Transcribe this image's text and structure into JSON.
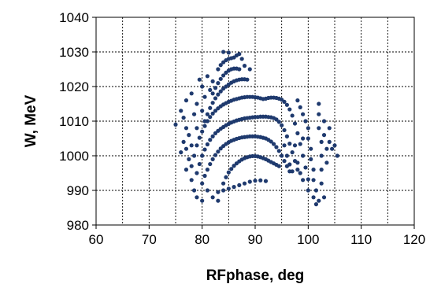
{
  "chart_data": {
    "type": "scatter",
    "xlabel": "RFphase, deg",
    "ylabel": "W, MeV",
    "xlim": [
      60,
      120
    ],
    "ylim": [
      980,
      1040
    ],
    "x_ticks": [
      60,
      70,
      80,
      90,
      100,
      110,
      120
    ],
    "y_ticks": [
      980,
      990,
      1000,
      1010,
      1020,
      1030,
      1040
    ],
    "grid": true,
    "marker_color": "#1F3A6E",
    "series": [
      {
        "points": [
          [
            84.0,
            992.0
          ],
          [
            84.5,
            993.8
          ],
          [
            85.0,
            995.2
          ],
          [
            85.5,
            996.2
          ],
          [
            86.0,
            997.1
          ],
          [
            86.5,
            997.8
          ],
          [
            87.0,
            998.4
          ],
          [
            87.5,
            998.9
          ],
          [
            88.0,
            999.3
          ],
          [
            88.5,
            999.6
          ],
          [
            89.0,
            999.8
          ],
          [
            89.5,
            999.9
          ],
          [
            90.0,
            999.9
          ],
          [
            90.5,
            999.8
          ],
          [
            91.0,
            999.6
          ],
          [
            91.5,
            999.3
          ],
          [
            92.0,
            999.0
          ],
          [
            92.5,
            998.6
          ],
          [
            93.0,
            998.2
          ],
          [
            93.5,
            997.8
          ],
          [
            94.0,
            997.4
          ],
          [
            94.5,
            997.0
          ],
          [
            83.0,
            989.5
          ],
          [
            84.0,
            990.0
          ],
          [
            85.0,
            990.5
          ],
          [
            86.0,
            991.0
          ],
          [
            87.0,
            991.5
          ],
          [
            88.0,
            992.0
          ],
          [
            89.0,
            992.5
          ],
          [
            90.0,
            992.8
          ],
          [
            91.0,
            992.9
          ],
          [
            92.0,
            992.7
          ],
          [
            80.0,
            992.0
          ],
          [
            80.5,
            994.2
          ],
          [
            81.0,
            996.0
          ],
          [
            81.5,
            997.6
          ],
          [
            82.0,
            999.0
          ],
          [
            82.5,
            1000.2
          ],
          [
            83.0,
            1001.2
          ],
          [
            83.5,
            1002.1
          ],
          [
            84.0,
            1002.8
          ],
          [
            84.5,
            1003.4
          ],
          [
            85.0,
            1003.9
          ],
          [
            85.5,
            1004.3
          ],
          [
            86.0,
            1004.6
          ],
          [
            86.5,
            1004.9
          ],
          [
            87.0,
            1005.1
          ],
          [
            87.5,
            1005.3
          ],
          [
            88.0,
            1005.4
          ],
          [
            88.5,
            1005.5
          ],
          [
            89.0,
            1005.6
          ],
          [
            89.5,
            1005.6
          ],
          [
            90.0,
            1005.6
          ],
          [
            90.5,
            1005.5
          ],
          [
            91.0,
            1005.4
          ],
          [
            91.5,
            1005.2
          ],
          [
            92.0,
            1005.0
          ],
          [
            92.5,
            1004.6
          ],
          [
            93.0,
            1004.1
          ],
          [
            93.5,
            1003.4
          ],
          [
            94.0,
            1002.5
          ],
          [
            94.5,
            1001.4
          ],
          [
            95.0,
            1000.0
          ],
          [
            95.5,
            998.5
          ],
          [
            96.0,
            997.0
          ],
          [
            96.5,
            995.5
          ],
          [
            79.0,
            995.0
          ],
          [
            79.5,
            997.6
          ],
          [
            80.0,
            1000.0
          ],
          [
            80.5,
            1001.8
          ],
          [
            81.0,
            1003.3
          ],
          [
            81.5,
            1004.6
          ],
          [
            82.0,
            1005.6
          ],
          [
            82.5,
            1006.5
          ],
          [
            83.0,
            1007.2
          ],
          [
            83.5,
            1007.8
          ],
          [
            84.0,
            1008.3
          ],
          [
            84.5,
            1008.8
          ],
          [
            85.0,
            1009.2
          ],
          [
            85.5,
            1009.6
          ],
          [
            86.0,
            1009.9
          ],
          [
            86.5,
            1010.2
          ],
          [
            87.0,
            1010.4
          ],
          [
            87.5,
            1010.6
          ],
          [
            88.0,
            1010.8
          ],
          [
            88.5,
            1010.9
          ],
          [
            89.0,
            1011.0
          ],
          [
            89.5,
            1011.1
          ],
          [
            90.0,
            1011.2
          ],
          [
            90.5,
            1011.2
          ],
          [
            91.0,
            1011.3
          ],
          [
            91.5,
            1011.3
          ],
          [
            92.0,
            1011.3
          ],
          [
            92.5,
            1011.2
          ],
          [
            93.0,
            1011.1
          ],
          [
            93.5,
            1010.9
          ],
          [
            94.0,
            1010.5
          ],
          [
            94.5,
            1009.8
          ],
          [
            95.0,
            1008.8
          ],
          [
            95.5,
            1007.4
          ],
          [
            96.0,
            1005.6
          ],
          [
            96.5,
            1003.5
          ],
          [
            97.0,
            1001.0
          ],
          [
            97.5,
            998.5
          ],
          [
            98.0,
            996.0
          ],
          [
            78.0,
            997.0
          ],
          [
            78.5,
            1000.0
          ],
          [
            79.0,
            1003.0
          ],
          [
            79.5,
            1005.2
          ],
          [
            80.0,
            1007.0
          ],
          [
            80.5,
            1008.6
          ],
          [
            81.0,
            1010.0
          ],
          [
            81.5,
            1011.2
          ],
          [
            82.0,
            1012.2
          ],
          [
            82.5,
            1013.0
          ],
          [
            83.0,
            1013.7
          ],
          [
            83.5,
            1014.3
          ],
          [
            84.0,
            1014.8
          ],
          [
            84.5,
            1015.2
          ],
          [
            85.0,
            1015.6
          ],
          [
            85.5,
            1015.9
          ],
          [
            86.0,
            1016.2
          ],
          [
            86.5,
            1016.4
          ],
          [
            87.0,
            1016.6
          ],
          [
            87.5,
            1016.8
          ],
          [
            88.0,
            1016.9
          ],
          [
            88.5,
            1017.0
          ],
          [
            89.0,
            1017.0
          ],
          [
            89.5,
            1017.0
          ],
          [
            90.0,
            1016.9
          ],
          [
            90.5,
            1016.8
          ],
          [
            91.0,
            1016.6
          ],
          [
            91.5,
            1016.4
          ],
          [
            92.0,
            1016.5
          ],
          [
            92.5,
            1016.7
          ],
          [
            93.0,
            1016.8
          ],
          [
            93.5,
            1016.8
          ],
          [
            94.0,
            1016.7
          ],
          [
            94.5,
            1016.5
          ],
          [
            95.0,
            1016.2
          ],
          [
            95.5,
            1015.6
          ],
          [
            96.0,
            1014.7
          ],
          [
            96.5,
            1013.4
          ],
          [
            97.0,
            1011.6
          ],
          [
            97.5,
            1009.3
          ],
          [
            98.0,
            1006.5
          ],
          [
            98.5,
            1003.4
          ],
          [
            99.0,
            1000.0
          ],
          [
            99.5,
            996.6
          ],
          [
            100.0,
            993.2
          ],
          [
            80.5,
            1010.0
          ],
          [
            81.0,
            1012.0
          ],
          [
            81.5,
            1013.8
          ],
          [
            82.0,
            1015.3
          ],
          [
            82.5,
            1016.6
          ],
          [
            83.0,
            1017.7
          ],
          [
            83.5,
            1018.6
          ],
          [
            84.0,
            1019.4
          ],
          [
            84.5,
            1020.0
          ],
          [
            85.0,
            1020.6
          ],
          [
            85.5,
            1021.1
          ],
          [
            86.0,
            1021.5
          ],
          [
            86.5,
            1021.8
          ],
          [
            87.0,
            1022.0
          ],
          [
            87.5,
            1022.1
          ],
          [
            88.0,
            1022.1
          ],
          [
            88.5,
            1022.0
          ],
          [
            82.0,
            1018.0
          ],
          [
            82.5,
            1019.6
          ],
          [
            83.0,
            1021.0
          ],
          [
            83.5,
            1022.2
          ],
          [
            84.0,
            1023.2
          ],
          [
            84.5,
            1024.0
          ],
          [
            85.0,
            1024.6
          ],
          [
            85.5,
            1025.0
          ],
          [
            86.0,
            1025.2
          ],
          [
            86.5,
            1025.2
          ],
          [
            87.0,
            1025.0
          ],
          [
            83.0,
            1025.0
          ],
          [
            83.5,
            1026.2
          ],
          [
            84.0,
            1027.0
          ],
          [
            84.5,
            1027.6
          ],
          [
            85.0,
            1028.0
          ],
          [
            85.5,
            1028.2
          ],
          [
            86.0,
            1028.4
          ],
          [
            86.5,
            1029.0
          ],
          [
            87.0,
            1029.4
          ],
          [
            84.0,
            1030.0
          ],
          [
            85.0,
            1029.8
          ],
          [
            87.5,
            1028.0
          ],
          [
            88.0,
            1026.0
          ],
          [
            89.0,
            1025.0
          ],
          [
            76.0,
            1013.0
          ],
          [
            76.5,
            1011.0
          ],
          [
            77.0,
            1008.0
          ],
          [
            77.5,
            1006.0
          ],
          [
            76.5,
            1004.0
          ],
          [
            77.0,
            1002.0
          ],
          [
            76.0,
            1001.0
          ],
          [
            77.5,
            999.0
          ],
          [
            77.0,
            996.0
          ],
          [
            78.0,
            993.0
          ],
          [
            78.5,
            990.0
          ],
          [
            79.0,
            988.0
          ],
          [
            80.0,
            987.0
          ],
          [
            75.0,
            1009.0
          ],
          [
            77.0,
            1016.0
          ],
          [
            78.0,
            1018.0
          ],
          [
            79.0,
            1015.0
          ],
          [
            80.0,
            1020.0
          ],
          [
            79.5,
            1022.0
          ],
          [
            80.5,
            1017.0
          ],
          [
            81.0,
            1023.0
          ],
          [
            81.5,
            1019.0
          ],
          [
            82.0,
            1021.5
          ],
          [
            80.0,
            1013.0
          ],
          [
            78.5,
            1012.0
          ],
          [
            79.0,
            1008.0
          ],
          [
            78.0,
            1003.0
          ],
          [
            81.0,
            990.0
          ],
          [
            82.0,
            988.0
          ],
          [
            83.0,
            987.0
          ],
          [
            98.0,
            1016.0
          ],
          [
            98.5,
            1014.0
          ],
          [
            99.0,
            1012.0
          ],
          [
            99.5,
            1010.0
          ],
          [
            100.0,
            1008.0
          ],
          [
            100.0,
            1005.0
          ],
          [
            100.5,
            1002.0
          ],
          [
            100.5,
            999.0
          ],
          [
            101.0,
            996.0
          ],
          [
            101.0,
            993.0
          ],
          [
            101.5,
            990.0
          ],
          [
            101.5,
            986.0
          ],
          [
            102.0,
            1015.0
          ],
          [
            102.0,
            1012.0
          ],
          [
            102.0,
            1008.0
          ],
          [
            102.5,
            1004.0
          ],
          [
            102.5,
            1000.0
          ],
          [
            102.5,
            996.0
          ],
          [
            102.5,
            992.0
          ],
          [
            103.0,
            988.0
          ],
          [
            103.0,
            1010.0
          ],
          [
            103.0,
            1006.0
          ],
          [
            103.5,
            1002.0
          ],
          [
            103.5,
            998.0
          ],
          [
            104.0,
            1008.0
          ],
          [
            104.0,
            1004.0
          ],
          [
            104.5,
            1002.0
          ],
          [
            105.0,
            1003.0
          ],
          [
            105.5,
            1000.0
          ],
          [
            102.0,
            987.0
          ],
          [
            101.0,
            988.0
          ],
          [
            100.0,
            990.0
          ],
          [
            99.0,
            993.0
          ],
          [
            98.5,
            995.0
          ],
          [
            98.0,
            998.0
          ],
          [
            97.0,
            995.5
          ],
          [
            96.5,
            997.5
          ],
          [
            96.0,
            1000.0
          ],
          [
            95.5,
            1003.0
          ],
          [
            97.5,
            1003.0
          ],
          [
            99.0,
            1005.0
          ]
        ]
      }
    ]
  }
}
